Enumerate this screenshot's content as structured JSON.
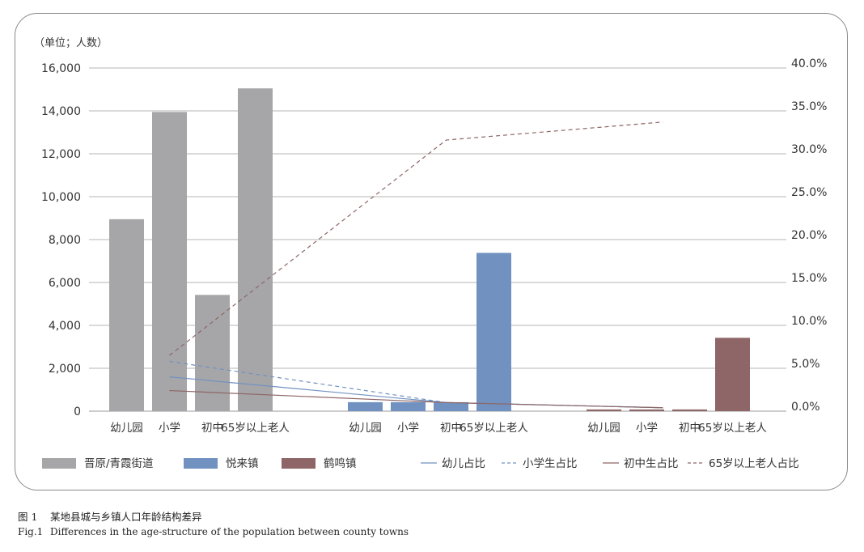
{
  "chart_data": {
    "type": "bar",
    "unit_label": "（单位；人数）",
    "groups": [
      "晋原/青霞街道",
      "悦来镇",
      "鹤鸣镇"
    ],
    "categories": [
      "幼儿园",
      "小学",
      "初中",
      "65岁以上老人"
    ],
    "ylim": [
      0,
      16000
    ],
    "y_ticks": [
      "0",
      "2,000",
      "4,000",
      "6,000",
      "8,000",
      "10,000",
      "12,000",
      "14,000",
      "16,000"
    ],
    "y2lim": [
      0,
      40
    ],
    "y2_ticks": [
      "0.0%",
      "5.0%",
      "10.0%",
      "15.0%",
      "20.0%",
      "25.0%",
      "30.0%",
      "35.0%",
      "40.0%"
    ],
    "bar_series": [
      {
        "name": "晋原/青霞街道",
        "color": "#a6a6a8",
        "values": [
          8950,
          13950,
          5420,
          15050
        ]
      },
      {
        "name": "悦来镇",
        "color": "#7192c1",
        "values": [
          420,
          420,
          420,
          7380
        ]
      },
      {
        "name": "鹤鸣镇",
        "color": "#8e6667",
        "values": [
          80,
          80,
          80,
          3420
        ]
      }
    ],
    "line_series": [
      {
        "name": "幼儿占比",
        "color": "#7192c1",
        "dash": "solid",
        "values": [
          4.0,
          1.0,
          0.4
        ]
      },
      {
        "name": "小学生占比",
        "color": "#7192c1",
        "dash": "dashed",
        "values": [
          5.8,
          1.0,
          0.4
        ]
      },
      {
        "name": "初中生占比",
        "color": "#8e6667",
        "dash": "solid",
        "values": [
          2.4,
          1.0,
          0.4
        ]
      },
      {
        "name": "65岁以上老人占比",
        "color": "#8e6667",
        "dash": "dashed",
        "values": [
          6.5,
          31.6,
          33.7
        ]
      }
    ],
    "grid": true,
    "legend_position": "bottom"
  },
  "captions": {
    "zh_num": "图 1",
    "zh_text": "某地县城与乡镇人口年龄结构差异",
    "en_num": "Fig.1",
    "en_text": "Differences in the age-structure of the population between county towns"
  }
}
